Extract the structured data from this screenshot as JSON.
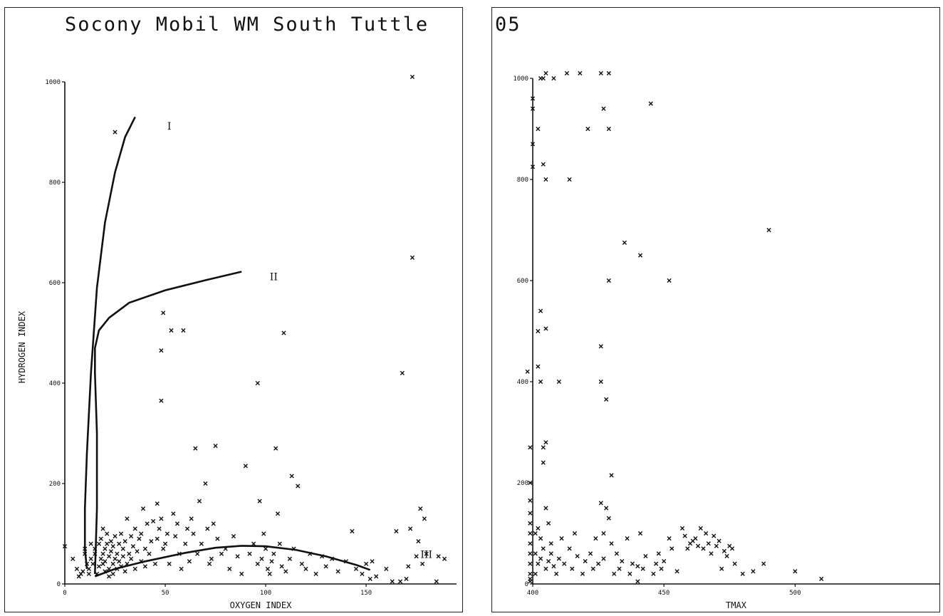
{
  "title": "Socony Mobil WM South Tuttle",
  "title_suffix": "05",
  "chart_data": [
    {
      "type": "scatter",
      "title": "Socony Mobil WM South Tuttle",
      "xlabel": "OXYGEN INDEX",
      "ylabel": "HYDROGEN INDEX",
      "xlim": [
        0,
        195
      ],
      "ylim": [
        0,
        1000
      ],
      "xticks": [
        "0",
        "50",
        "100",
        "150"
      ],
      "yticks": [
        "0",
        "200",
        "400",
        "600",
        "800",
        "1000"
      ],
      "region_labels": [
        {
          "text": "I",
          "x": 52,
          "y": 905
        },
        {
          "text": "II",
          "x": 104,
          "y": 605
        },
        {
          "text": "III",
          "x": 180,
          "y": 52
        }
      ],
      "curves": [
        {
          "name": "I",
          "points": [
            [
              35,
              930
            ],
            [
              30,
              890
            ],
            [
              25,
              820
            ],
            [
              20,
              720
            ],
            [
              16,
              590
            ],
            [
              13,
              420
            ],
            [
              11,
              260
            ],
            [
              10,
              150
            ],
            [
              10,
              70
            ],
            [
              11,
              30
            ]
          ]
        },
        {
          "name": "I-inner",
          "points": [
            [
              15,
              20
            ],
            [
              16,
              150
            ],
            [
              16,
              300
            ],
            [
              15,
              420
            ],
            [
              15,
              470
            ],
            [
              17,
              505
            ],
            [
              22,
              530
            ],
            [
              32,
              560
            ],
            [
              50,
              585
            ],
            [
              70,
              605
            ],
            [
              88,
              622
            ]
          ]
        },
        {
          "name": "III",
          "points": [
            [
              15,
              15
            ],
            [
              25,
              30
            ],
            [
              40,
              45
            ],
            [
              60,
              62
            ],
            [
              75,
              72
            ],
            [
              88,
              76
            ],
            [
              100,
              75
            ],
            [
              115,
              68
            ],
            [
              130,
              55
            ],
            [
              145,
              38
            ],
            [
              152,
              28
            ]
          ]
        }
      ],
      "points": [
        [
          0,
          75
        ],
        [
          4,
          50
        ],
        [
          6,
          30
        ],
        [
          7,
          15
        ],
        [
          8,
          20
        ],
        [
          9,
          25
        ],
        [
          10,
          70
        ],
        [
          10,
          60
        ],
        [
          11,
          40
        ],
        [
          12,
          20
        ],
        [
          12,
          30
        ],
        [
          13,
          50
        ],
        [
          13,
          80
        ],
        [
          14,
          40
        ],
        [
          15,
          60
        ],
        [
          15,
          70
        ],
        [
          16,
          20
        ],
        [
          17,
          35
        ],
        [
          17,
          80
        ],
        [
          18,
          50
        ],
        [
          18,
          90
        ],
        [
          19,
          40
        ],
        [
          19,
          60
        ],
        [
          19,
          110
        ],
        [
          20,
          25
        ],
        [
          20,
          45
        ],
        [
          20,
          70
        ],
        [
          21,
          80
        ],
        [
          21,
          100
        ],
        [
          22,
          15
        ],
        [
          22,
          30
        ],
        [
          22,
          55
        ],
        [
          23,
          65
        ],
        [
          23,
          85
        ],
        [
          24,
          20
        ],
        [
          24,
          40
        ],
        [
          24,
          75
        ],
        [
          25,
          50
        ],
        [
          25,
          95
        ],
        [
          25,
          900
        ],
        [
          26,
          30
        ],
        [
          26,
          60
        ],
        [
          27,
          45
        ],
        [
          27,
          80
        ],
        [
          28,
          35
        ],
        [
          28,
          100
        ],
        [
          29,
          55
        ],
        [
          29,
          70
        ],
        [
          30,
          25
        ],
        [
          30,
          85
        ],
        [
          31,
          40
        ],
        [
          31,
          130
        ],
        [
          32,
          60
        ],
        [
          33,
          95
        ],
        [
          33,
          50
        ],
        [
          34,
          75
        ],
        [
          35,
          30
        ],
        [
          35,
          110
        ],
        [
          36,
          65
        ],
        [
          37,
          90
        ],
        [
          38,
          45
        ],
        [
          38,
          100
        ],
        [
          39,
          150
        ],
        [
          40,
          70
        ],
        [
          40,
          35
        ],
        [
          41,
          120
        ],
        [
          42,
          60
        ],
        [
          43,
          85
        ],
        [
          44,
          125
        ],
        [
          45,
          40
        ],
        [
          46,
          90
        ],
        [
          46,
          160
        ],
        [
          47,
          110
        ],
        [
          48,
          365
        ],
        [
          48,
          465
        ],
        [
          48,
          130
        ],
        [
          49,
          540
        ],
        [
          49,
          70
        ],
        [
          50,
          80
        ],
        [
          51,
          100
        ],
        [
          52,
          40
        ],
        [
          53,
          505
        ],
        [
          54,
          140
        ],
        [
          55,
          95
        ],
        [
          56,
          120
        ],
        [
          57,
          60
        ],
        [
          58,
          30
        ],
        [
          59,
          505
        ],
        [
          60,
          80
        ],
        [
          61,
          110
        ],
        [
          62,
          45
        ],
        [
          63,
          130
        ],
        [
          64,
          100
        ],
        [
          65,
          270
        ],
        [
          66,
          60
        ],
        [
          67,
          165
        ],
        [
          68,
          80
        ],
        [
          70,
          200
        ],
        [
          71,
          110
        ],
        [
          72,
          40
        ],
        [
          73,
          50
        ],
        [
          74,
          120
        ],
        [
          75,
          275
        ],
        [
          76,
          90
        ],
        [
          78,
          60
        ],
        [
          80,
          70
        ],
        [
          82,
          30
        ],
        [
          84,
          95
        ],
        [
          86,
          55
        ],
        [
          88,
          20
        ],
        [
          90,
          235
        ],
        [
          92,
          60
        ],
        [
          94,
          80
        ],
        [
          96,
          40
        ],
        [
          96,
          400
        ],
        [
          97,
          165
        ],
        [
          98,
          50
        ],
        [
          99,
          100
        ],
        [
          100,
          70
        ],
        [
          101,
          30
        ],
        [
          102,
          20
        ],
        [
          103,
          45
        ],
        [
          104,
          60
        ],
        [
          105,
          270
        ],
        [
          106,
          140
        ],
        [
          107,
          80
        ],
        [
          108,
          35
        ],
        [
          109,
          500
        ],
        [
          110,
          25
        ],
        [
          112,
          50
        ],
        [
          113,
          215
        ],
        [
          114,
          70
        ],
        [
          116,
          195
        ],
        [
          118,
          40
        ],
        [
          120,
          30
        ],
        [
          122,
          60
        ],
        [
          125,
          20
        ],
        [
          128,
          55
        ],
        [
          130,
          35
        ],
        [
          133,
          50
        ],
        [
          136,
          25
        ],
        [
          140,
          45
        ],
        [
          143,
          105
        ],
        [
          145,
          30
        ],
        [
          148,
          20
        ],
        [
          150,
          40
        ],
        [
          152,
          10
        ],
        [
          153,
          45
        ],
        [
          155,
          15
        ],
        [
          160,
          30
        ],
        [
          163,
          5
        ],
        [
          165,
          105
        ],
        [
          167,
          5
        ],
        [
          168,
          420
        ],
        [
          170,
          10
        ],
        [
          171,
          35
        ],
        [
          172,
          110
        ],
        [
          173,
          1010
        ],
        [
          173,
          650
        ],
        [
          175,
          55
        ],
        [
          176,
          85
        ],
        [
          177,
          150
        ],
        [
          178,
          40
        ],
        [
          179,
          130
        ],
        [
          180,
          60
        ],
        [
          185,
          5
        ],
        [
          186,
          55
        ],
        [
          189,
          50
        ]
      ]
    },
    {
      "type": "scatter",
      "title": "",
      "xlabel": "TMAX",
      "ylabel": "",
      "xlim": [
        400,
        555
      ],
      "ylim": [
        0,
        1000
      ],
      "xticks": [
        "400",
        "450",
        "500"
      ],
      "yticks": [
        "0",
        "200",
        "400",
        "600",
        "800",
        "1000"
      ],
      "points": [
        [
          398,
          420
        ],
        [
          399,
          270
        ],
        [
          399,
          200
        ],
        [
          399,
          165
        ],
        [
          399,
          140
        ],
        [
          399,
          120
        ],
        [
          399,
          100
        ],
        [
          399,
          80
        ],
        [
          399,
          60
        ],
        [
          399,
          40
        ],
        [
          399,
          20
        ],
        [
          399,
          10
        ],
        [
          399,
          5
        ],
        [
          400,
          960
        ],
        [
          400,
          940
        ],
        [
          400,
          870
        ],
        [
          400,
          825
        ],
        [
          401,
          100
        ],
        [
          401,
          60
        ],
        [
          401,
          20
        ],
        [
          402,
          900
        ],
        [
          402,
          500
        ],
        [
          402,
          430
        ],
        [
          402,
          110
        ],
        [
          402,
          40
        ],
        [
          403,
          1000
        ],
        [
          403,
          540
        ],
        [
          403,
          400
        ],
        [
          403,
          90
        ],
        [
          403,
          50
        ],
        [
          404,
          1000
        ],
        [
          404,
          830
        ],
        [
          404,
          270
        ],
        [
          404,
          240
        ],
        [
          404,
          70
        ],
        [
          405,
          1010
        ],
        [
          405,
          800
        ],
        [
          405,
          505
        ],
        [
          405,
          280
        ],
        [
          405,
          150
        ],
        [
          405,
          30
        ],
        [
          406,
          120
        ],
        [
          406,
          45
        ],
        [
          407,
          60
        ],
        [
          407,
          80
        ],
        [
          408,
          1000
        ],
        [
          408,
          35
        ],
        [
          409,
          20
        ],
        [
          410,
          400
        ],
        [
          410,
          50
        ],
        [
          411,
          90
        ],
        [
          412,
          40
        ],
        [
          413,
          1010
        ],
        [
          414,
          800
        ],
        [
          414,
          70
        ],
        [
          415,
          30
        ],
        [
          416,
          100
        ],
        [
          417,
          55
        ],
        [
          418,
          1010
        ],
        [
          419,
          20
        ],
        [
          420,
          45
        ],
        [
          421,
          900
        ],
        [
          422,
          60
        ],
        [
          423,
          30
        ],
        [
          424,
          90
        ],
        [
          425,
          40
        ],
        [
          426,
          1010
        ],
        [
          426,
          470
        ],
        [
          426,
          400
        ],
        [
          426,
          160
        ],
        [
          427,
          940
        ],
        [
          427,
          100
        ],
        [
          427,
          50
        ],
        [
          428,
          365
        ],
        [
          428,
          150
        ],
        [
          429,
          1010
        ],
        [
          429,
          900
        ],
        [
          429,
          600
        ],
        [
          429,
          130
        ],
        [
          430,
          215
        ],
        [
          430,
          80
        ],
        [
          431,
          20
        ],
        [
          432,
          60
        ],
        [
          433,
          30
        ],
        [
          434,
          45
        ],
        [
          435,
          675
        ],
        [
          436,
          90
        ],
        [
          437,
          20
        ],
        [
          438,
          40
        ],
        [
          440,
          35
        ],
        [
          440,
          5
        ],
        [
          441,
          650
        ],
        [
          441,
          100
        ],
        [
          442,
          30
        ],
        [
          443,
          55
        ],
        [
          445,
          950
        ],
        [
          446,
          20
        ],
        [
          447,
          40
        ],
        [
          448,
          60
        ],
        [
          449,
          30
        ],
        [
          450,
          45
        ],
        [
          452,
          600
        ],
        [
          452,
          90
        ],
        [
          453,
          70
        ],
        [
          455,
          25
        ],
        [
          457,
          110
        ],
        [
          458,
          95
        ],
        [
          459,
          70
        ],
        [
          460,
          80
        ],
        [
          461,
          85
        ],
        [
          462,
          90
        ],
        [
          463,
          75
        ],
        [
          464,
          110
        ],
        [
          465,
          70
        ],
        [
          466,
          100
        ],
        [
          467,
          80
        ],
        [
          468,
          60
        ],
        [
          469,
          95
        ],
        [
          470,
          75
        ],
        [
          471,
          85
        ],
        [
          472,
          30
        ],
        [
          473,
          65
        ],
        [
          474,
          55
        ],
        [
          475,
          75
        ],
        [
          476,
          70
        ],
        [
          477,
          40
        ],
        [
          480,
          20
        ],
        [
          484,
          25
        ],
        [
          488,
          40
        ],
        [
          490,
          700
        ],
        [
          500,
          25
        ],
        [
          510,
          10
        ]
      ]
    }
  ]
}
